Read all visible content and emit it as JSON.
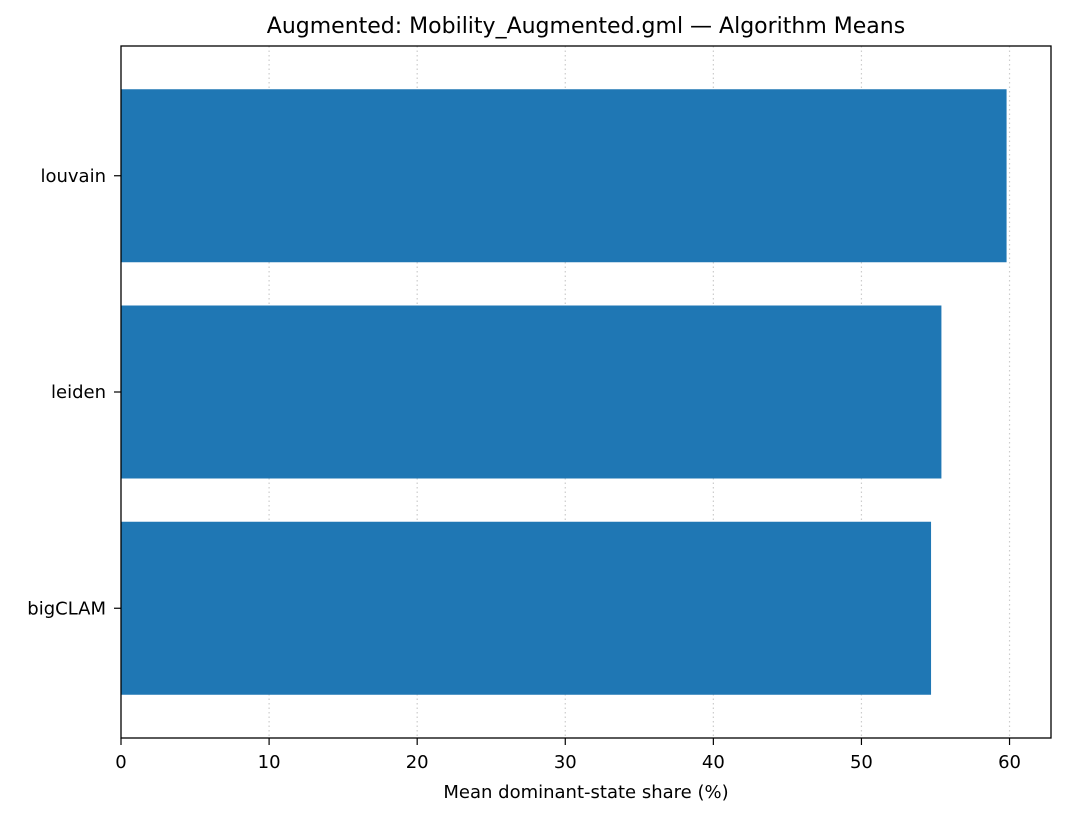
{
  "chart_data": {
    "type": "bar",
    "orientation": "horizontal",
    "title": "Augmented: Mobility_Augmented.gml — Algorithm Means",
    "xlabel": "Mean dominant-state share (%)",
    "ylabel": "",
    "categories": [
      "louvain",
      "leiden",
      "bigCLAM"
    ],
    "values": [
      59.8,
      55.4,
      54.7
    ],
    "xlim": [
      0,
      62.8
    ],
    "xticks": [
      0,
      10,
      20,
      30,
      40,
      50,
      60
    ],
    "bar_color": "#1f77b4",
    "grid": "x-dotted",
    "legend": "none"
  }
}
